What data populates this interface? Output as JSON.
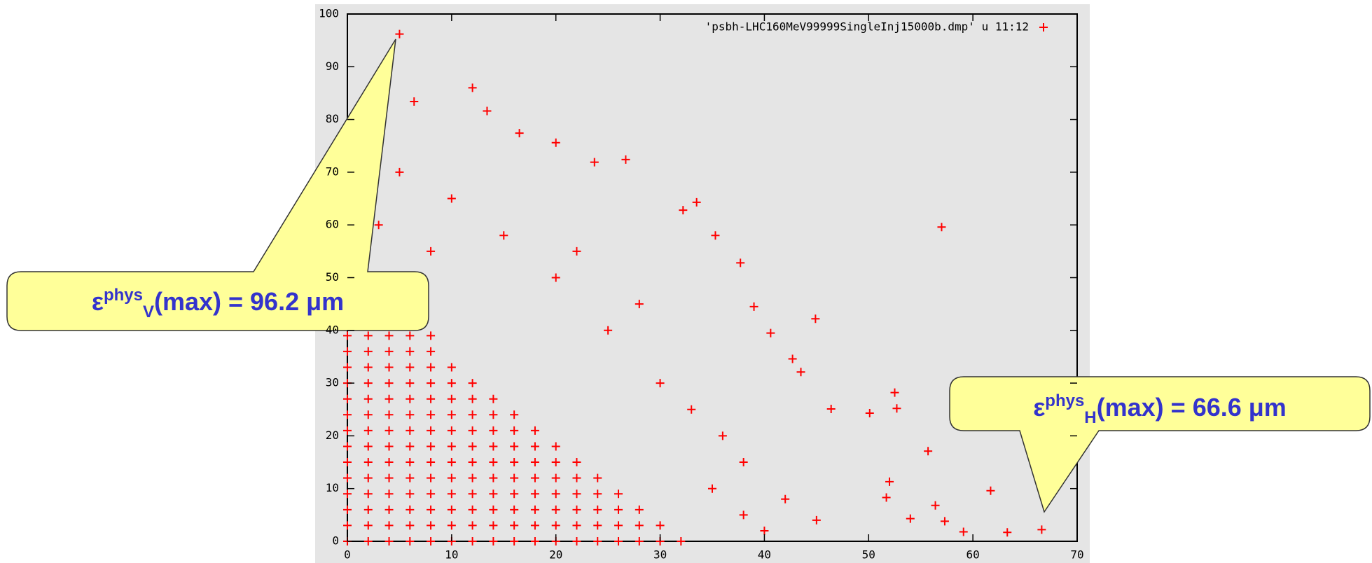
{
  "chart_data": {
    "type": "scatter",
    "xlim": [
      0,
      70
    ],
    "ylim": [
      0,
      100
    ],
    "xticks": [
      0,
      10,
      20,
      30,
      40,
      50,
      60,
      70
    ],
    "yticks": [
      0,
      10,
      20,
      30,
      40,
      50,
      60,
      70,
      80,
      90,
      100
    ],
    "grid": false,
    "legend": "top-right",
    "x": [
      0,
      2,
      4,
      6,
      8,
      10,
      12,
      14,
      16,
      18,
      20,
      22,
      24,
      26,
      28,
      30,
      32,
      0,
      2,
      4,
      6,
      8,
      10,
      12,
      14,
      16,
      18,
      20,
      22,
      24,
      26,
      28,
      30,
      0,
      2,
      4,
      6,
      8,
      10,
      12,
      14,
      16,
      18,
      20,
      22,
      24,
      26,
      28,
      0,
      2,
      4,
      6,
      8,
      10,
      12,
      14,
      16,
      18,
      20,
      22,
      24,
      26,
      0,
      2,
      4,
      6,
      8,
      10,
      12,
      14,
      16,
      18,
      20,
      22,
      24,
      0,
      2,
      4,
      6,
      8,
      10,
      12,
      14,
      16,
      18,
      20,
      22,
      0,
      2,
      4,
      6,
      8,
      10,
      12,
      14,
      16,
      18,
      20,
      0,
      2,
      4,
      6,
      8,
      10,
      12,
      14,
      16,
      18,
      0,
      2,
      4,
      6,
      8,
      10,
      12,
      14,
      16,
      0,
      2,
      4,
      6,
      8,
      10,
      12,
      14,
      0,
      2,
      4,
      6,
      8,
      10,
      12,
      0,
      2,
      4,
      6,
      8,
      10,
      0,
      2,
      4,
      6,
      8,
      0,
      2,
      4,
      6,
      8,
      0,
      2,
      4,
      6,
      0,
      2,
      4,
      0,
      2,
      0,
      5.0,
      12.0,
      57.0,
      66.6,
      63.3,
      61.7,
      52.5,
      52.7,
      44.9,
      50.1,
      55.7,
      57.3,
      54.0,
      56.4,
      59.1,
      26.7,
      33.5,
      35.3,
      37.7,
      42.7,
      46.4,
      6.4,
      13.4,
      16.5,
      20.0,
      23.7,
      32.2,
      39.0,
      40.6,
      43.5,
      52.0,
      51.7,
      35,
      38,
      40,
      42,
      45,
      36,
      30,
      25,
      20,
      15,
      10,
      5,
      28,
      22,
      33,
      38,
      3,
      8
    ],
    "series": [
      {
        "name": "'psbh-LHC160MeV99999SingleInj15000b.dmp' u 11:12",
        "color": "#ff0000",
        "values": [
          0,
          0,
          0,
          0,
          0,
          0,
          0,
          0,
          0,
          0,
          0,
          0,
          0,
          0,
          0,
          0,
          0,
          3,
          3,
          3,
          3,
          3,
          3,
          3,
          3,
          3,
          3,
          3,
          3,
          3,
          3,
          3,
          3,
          6,
          6,
          6,
          6,
          6,
          6,
          6,
          6,
          6,
          6,
          6,
          6,
          6,
          6,
          6,
          9,
          9,
          9,
          9,
          9,
          9,
          9,
          9,
          9,
          9,
          9,
          9,
          9,
          9,
          12,
          12,
          12,
          12,
          12,
          12,
          12,
          12,
          12,
          12,
          12,
          12,
          12,
          15,
          15,
          15,
          15,
          15,
          15,
          15,
          15,
          15,
          15,
          15,
          15,
          18,
          18,
          18,
          18,
          18,
          18,
          18,
          18,
          18,
          18,
          18,
          21,
          21,
          21,
          21,
          21,
          21,
          21,
          21,
          21,
          21,
          24,
          24,
          24,
          24,
          24,
          24,
          24,
          24,
          24,
          27,
          27,
          27,
          27,
          27,
          27,
          27,
          27,
          30,
          30,
          30,
          30,
          30,
          30,
          30,
          33,
          33,
          33,
          33,
          33,
          33,
          36,
          36,
          36,
          36,
          36,
          39,
          39,
          39,
          39,
          39,
          42,
          42,
          42,
          42,
          45,
          45,
          45,
          48,
          48,
          51,
          96.2,
          86.0,
          59.6,
          2.2,
          1.7,
          9.6,
          28.2,
          25.2,
          42.2,
          24.3,
          17.1,
          3.8,
          4.3,
          6.8,
          1.8,
          72.4,
          64.3,
          58.0,
          52.8,
          34.6,
          25.1,
          83.4,
          81.6,
          77.4,
          75.6,
          71.9,
          62.8,
          44.5,
          39.5,
          32.1,
          11.3,
          8.3,
          10,
          5,
          2,
          8,
          4,
          20,
          30,
          40,
          50,
          58,
          65,
          70,
          45,
          55,
          25,
          15,
          60,
          55
        ]
      }
    ],
    "annotations": [
      {
        "symbol": "ε",
        "sup": "phys",
        "sub": "V",
        "text": "(max) = 96.2 μm"
      },
      {
        "symbol": "ε",
        "sup": "phys",
        "sub": "H",
        "text": "(max) = 66.6 μm"
      }
    ]
  }
}
